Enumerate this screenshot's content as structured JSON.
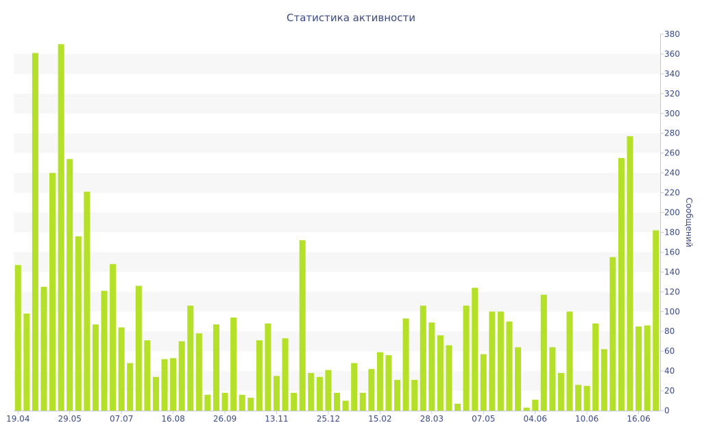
{
  "chart_data": {
    "type": "bar",
    "title": "Статистика активности",
    "ylabel": "Сообщений",
    "xlabel": "",
    "ylim": [
      0,
      380
    ],
    "y_ticks": [
      0,
      20,
      40,
      60,
      80,
      100,
      120,
      140,
      160,
      180,
      200,
      220,
      240,
      260,
      280,
      300,
      320,
      340,
      360,
      380
    ],
    "y_axis_position": "right",
    "x_tick_labels": [
      {
        "index": 0,
        "label": "19.04"
      },
      {
        "index": 6,
        "label": "29.05"
      },
      {
        "index": 12,
        "label": "07.07"
      },
      {
        "index": 18,
        "label": "16.08"
      },
      {
        "index": 24,
        "label": "26.09"
      },
      {
        "index": 30,
        "label": "13.11"
      },
      {
        "index": 36,
        "label": "25.12"
      },
      {
        "index": 42,
        "label": "15.02"
      },
      {
        "index": 48,
        "label": "28.03"
      },
      {
        "index": 54,
        "label": "07.05"
      },
      {
        "index": 60,
        "label": "04.06"
      },
      {
        "index": 66,
        "label": "10.06"
      },
      {
        "index": 72,
        "label": "16.06"
      }
    ],
    "values": [
      147,
      98,
      361,
      125,
      240,
      370,
      254,
      176,
      221,
      87,
      121,
      148,
      84,
      48,
      126,
      71,
      34,
      52,
      53,
      70,
      106,
      78,
      16,
      87,
      18,
      94,
      16,
      13,
      71,
      88,
      35,
      73,
      18,
      172,
      38,
      34,
      41,
      18,
      10,
      48,
      18,
      42,
      59,
      56,
      31,
      93,
      31,
      106,
      89,
      76,
      66,
      7,
      106,
      124,
      57,
      100,
      100,
      90,
      64,
      3,
      11,
      117,
      64,
      38,
      100,
      26,
      25,
      88,
      62,
      155,
      255,
      277,
      85,
      86,
      182
    ],
    "bar_color": "#b5e02a",
    "band_color": "#f7f7f7",
    "text_color": "#3b4a8a",
    "grid": "alternating bands"
  }
}
